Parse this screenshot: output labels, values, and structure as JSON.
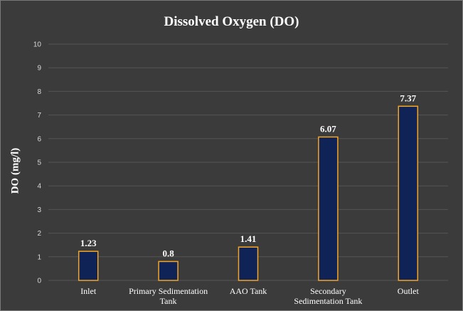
{
  "chart_data": {
    "type": "bar",
    "title": "Dissolved Oxygen (DO)",
    "xlabel": "",
    "ylabel": "DO (mg/l)",
    "ylim": [
      0,
      10
    ],
    "yticks": [
      0,
      1,
      2,
      3,
      4,
      5,
      6,
      7,
      8,
      9,
      10
    ],
    "categories": [
      [
        "Inlet"
      ],
      [
        "Primary Sedimentation",
        "Tank"
      ],
      [
        "AAO Tank"
      ],
      [
        "Secondary",
        "Sedimentation Tank"
      ],
      [
        "Outlet"
      ]
    ],
    "values": [
      1.23,
      0.8,
      1.41,
      6.07,
      7.37
    ],
    "data_labels": [
      "1.23",
      "0.8",
      "1.41",
      "6.07",
      "7.37"
    ],
    "grid": true,
    "legend": "none",
    "colors": {
      "background": "#3b3b3b",
      "bar_fill": "#0f2356",
      "bar_stroke": "#f5a623",
      "grid": "#555555"
    }
  }
}
